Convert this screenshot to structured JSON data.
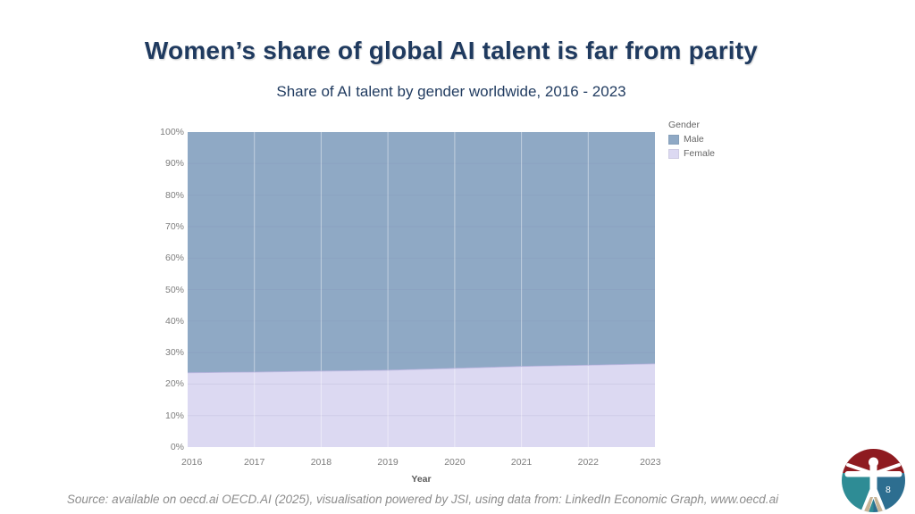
{
  "slide": {
    "title": "Women’s share of global AI talent is far from parity",
    "subtitle": "Share of AI talent by gender worldwide, 2016 - 2023",
    "source": "Source: available on oecd.ai OECD.AI (2025), visualisation powered by JSI, using data from: LinkedIn Economic Graph, www.oecd.ai",
    "page_number": "8"
  },
  "chart_data": {
    "type": "area",
    "stacked": true,
    "normalized_to_100_percent": true,
    "title": "Share of AI talent by gender worldwide, 2016 - 2023",
    "xlabel": "Year",
    "ylabel": "",
    "legend_title": "Gender",
    "legend_position": "top-right",
    "ylim": [
      0,
      100
    ],
    "y_ticks": [
      "0%",
      "10%",
      "20%",
      "30%",
      "40%",
      "50%",
      "60%",
      "70%",
      "80%",
      "90%",
      "100%"
    ],
    "x": [
      "2016",
      "2017",
      "2018",
      "2019",
      "2020",
      "2021",
      "2022",
      "2023"
    ],
    "series": [
      {
        "name": "Male",
        "color": "#8fa9c5",
        "values": [
          76.4,
          76.2,
          75.9,
          75.6,
          75.0,
          74.4,
          74.0,
          73.6
        ]
      },
      {
        "name": "Female",
        "color": "#dcd9f2",
        "values": [
          23.6,
          23.8,
          24.1,
          24.4,
          25.0,
          25.6,
          26.0,
          26.4
        ]
      }
    ],
    "stack_order_bottom_to_top": [
      "Female",
      "Male"
    ],
    "grid": true
  },
  "colors": {
    "title": "#1f3a5f",
    "axis_text": "#7d7d7d",
    "axis_title": "#5a5a5a",
    "legend_text": "#666666",
    "source_text": "#8c8c8c",
    "boundary_stroke": "#b5aedd",
    "logo_red": "#8e1b20",
    "logo_teal": "#2e8c95",
    "logo_blue": "#2d6e90",
    "logo_tan": "#c6b496",
    "page_number_color": "#ffffff"
  }
}
